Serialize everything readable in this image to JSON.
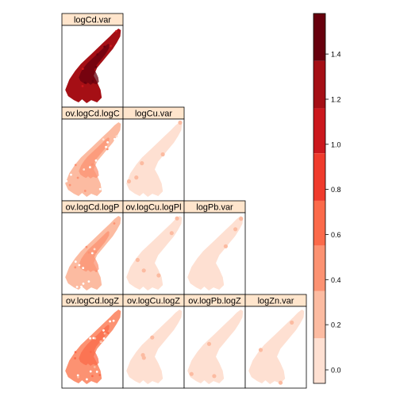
{
  "chart_data": {
    "type": "heatmap",
    "layout": "lower-triangular panel matrix",
    "panels": [
      {
        "title": "logCd.var",
        "row": 0,
        "col": 0,
        "level": 6
      },
      {
        "title": "ov.logCd.logC",
        "row": 1,
        "col": 0,
        "level": 1
      },
      {
        "title": "logCu.var",
        "row": 1,
        "col": 1,
        "level": 0
      },
      {
        "title": "ov.logCd.logP",
        "row": 2,
        "col": 0,
        "level": 1
      },
      {
        "title": "ov.logCu.logPl",
        "row": 2,
        "col": 1,
        "level": 0
      },
      {
        "title": "logPb.var",
        "row": 2,
        "col": 2,
        "level": 0
      },
      {
        "title": "ov.logCd.logZ",
        "row": 3,
        "col": 0,
        "level": 2
      },
      {
        "title": "ov.logCu.logZ",
        "row": 3,
        "col": 1,
        "level": 0
      },
      {
        "title": "ov.logPb.logZ",
        "row": 3,
        "col": 2,
        "level": 0
      },
      {
        "title": "logZn.var",
        "row": 3,
        "col": 3,
        "level": 0
      }
    ],
    "colorbar": {
      "range": [
        -0.06,
        1.58
      ],
      "breaks": [
        -0.06,
        0.14,
        0.35,
        0.55,
        0.75,
        0.96,
        1.16,
        1.37,
        1.58
      ],
      "ticks": [
        0.0,
        0.2,
        0.4,
        0.6,
        0.8,
        1.0,
        1.2,
        1.4
      ],
      "tick_labels": [
        "0.0",
        "0.2",
        "0.4",
        "0.6",
        "0.8",
        "1.0",
        "1.2",
        "1.4"
      ],
      "colors": [
        "#fee0d2",
        "#fcbba1",
        "#fc9272",
        "#fb6a4a",
        "#ef3b2c",
        "#cb181d",
        "#a50f15",
        "#67000d"
      ]
    }
  }
}
